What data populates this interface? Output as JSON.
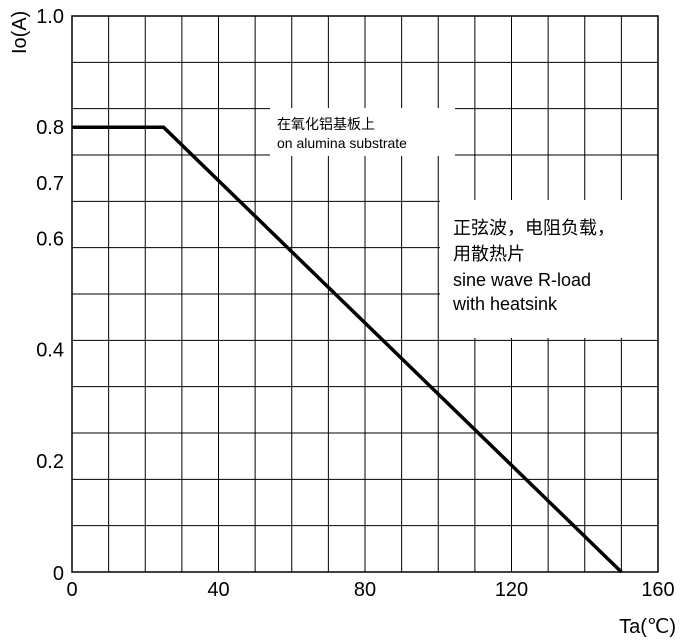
{
  "chart_data": {
    "type": "line",
    "title": "",
    "xlabel": "Ta(℃)",
    "ylabel": "Io(A)",
    "xlim": [
      0,
      160
    ],
    "ylim": [
      0,
      1.0
    ],
    "x_ticks": [
      {
        "value": 0,
        "label": "0"
      },
      {
        "value": 40,
        "label": "40"
      },
      {
        "value": 80,
        "label": "80"
      },
      {
        "value": 120,
        "label": "120"
      },
      {
        "value": 160,
        "label": "160"
      }
    ],
    "y_ticks": [
      {
        "value": 0,
        "label": "0"
      },
      {
        "value": 0.2,
        "label": "0.2"
      },
      {
        "value": 0.4,
        "label": "0.4"
      },
      {
        "value": 0.6,
        "label": "0.6"
      },
      {
        "value": 0.7,
        "label": "0.7"
      },
      {
        "value": 0.8,
        "label": "0.8"
      },
      {
        "value": 1.0,
        "label": "1.0"
      }
    ],
    "grid": true,
    "series": [
      {
        "x": [
          0,
          25,
          150
        ],
        "y": [
          0.8,
          0.8,
          0
        ]
      }
    ],
    "annotations": {
      "alumina_zh": "在氧化铝基板上",
      "alumina_en": "on alumina substrate",
      "heatsink_zh_1": "正弦波，电阻负载，",
      "heatsink_zh_2": "用散热片",
      "heatsink_en_1": "sine wave R-load",
      "heatsink_en_2": "with heatsink"
    }
  }
}
